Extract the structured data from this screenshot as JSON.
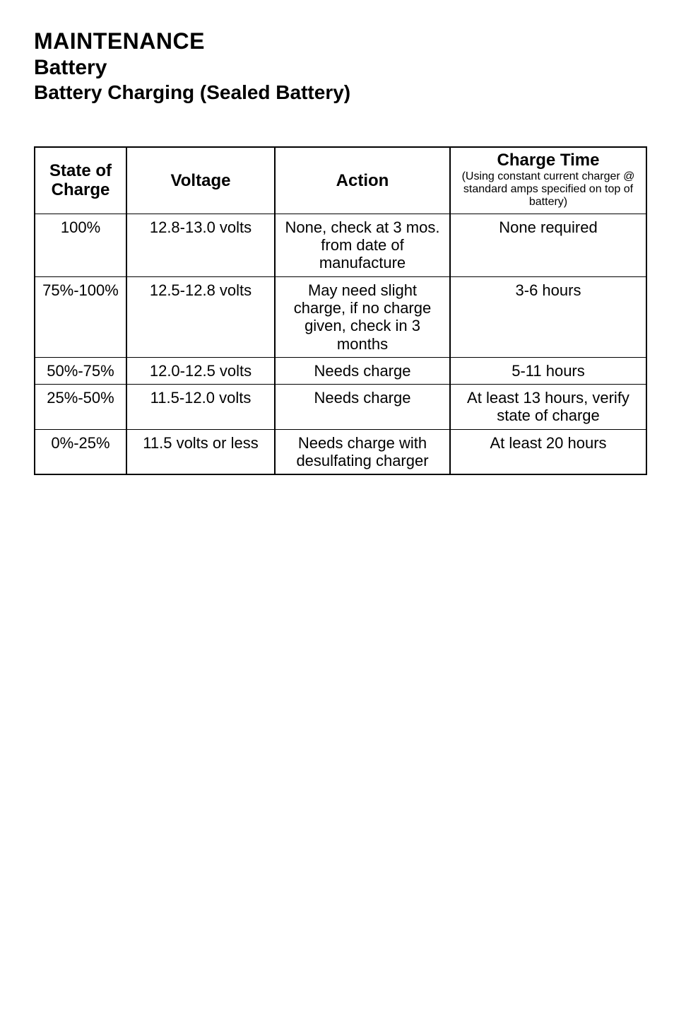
{
  "headings": {
    "main": "MAINTENANCE",
    "sub": "Battery",
    "sub2": "Battery Charging (Sealed Battery)"
  },
  "table": {
    "headers": {
      "state": "State of Charge",
      "voltage": "Voltage",
      "action": "Action",
      "charge_time_title": "Charge Time",
      "charge_time_sub": "(Using constant current charger @ standard amps specified on top of battery)"
    },
    "rows": [
      {
        "state": "100%",
        "voltage": "12.8-13.0 volts",
        "action": "None, check at 3 mos. from date of manufacture",
        "charge_time": "None required"
      },
      {
        "state": "75%-100%",
        "voltage": "12.5-12.8 volts",
        "action": "May need slight charge, if no charge given, check in 3 months",
        "charge_time": "3-6 hours"
      },
      {
        "state": "50%-75%",
        "voltage": "12.0-12.5 volts",
        "action": "Needs charge",
        "charge_time": "5-11 hours"
      },
      {
        "state": "25%-50%",
        "voltage": "11.5-12.0 volts",
        "action": "Needs charge",
        "charge_time": "At least 13 hours, verify state of charge"
      },
      {
        "state": "0%-25%",
        "voltage": "11.5 volts or less",
        "action": "Needs charge with desulfating charger",
        "charge_time": "At least 20 hours"
      }
    ]
  }
}
